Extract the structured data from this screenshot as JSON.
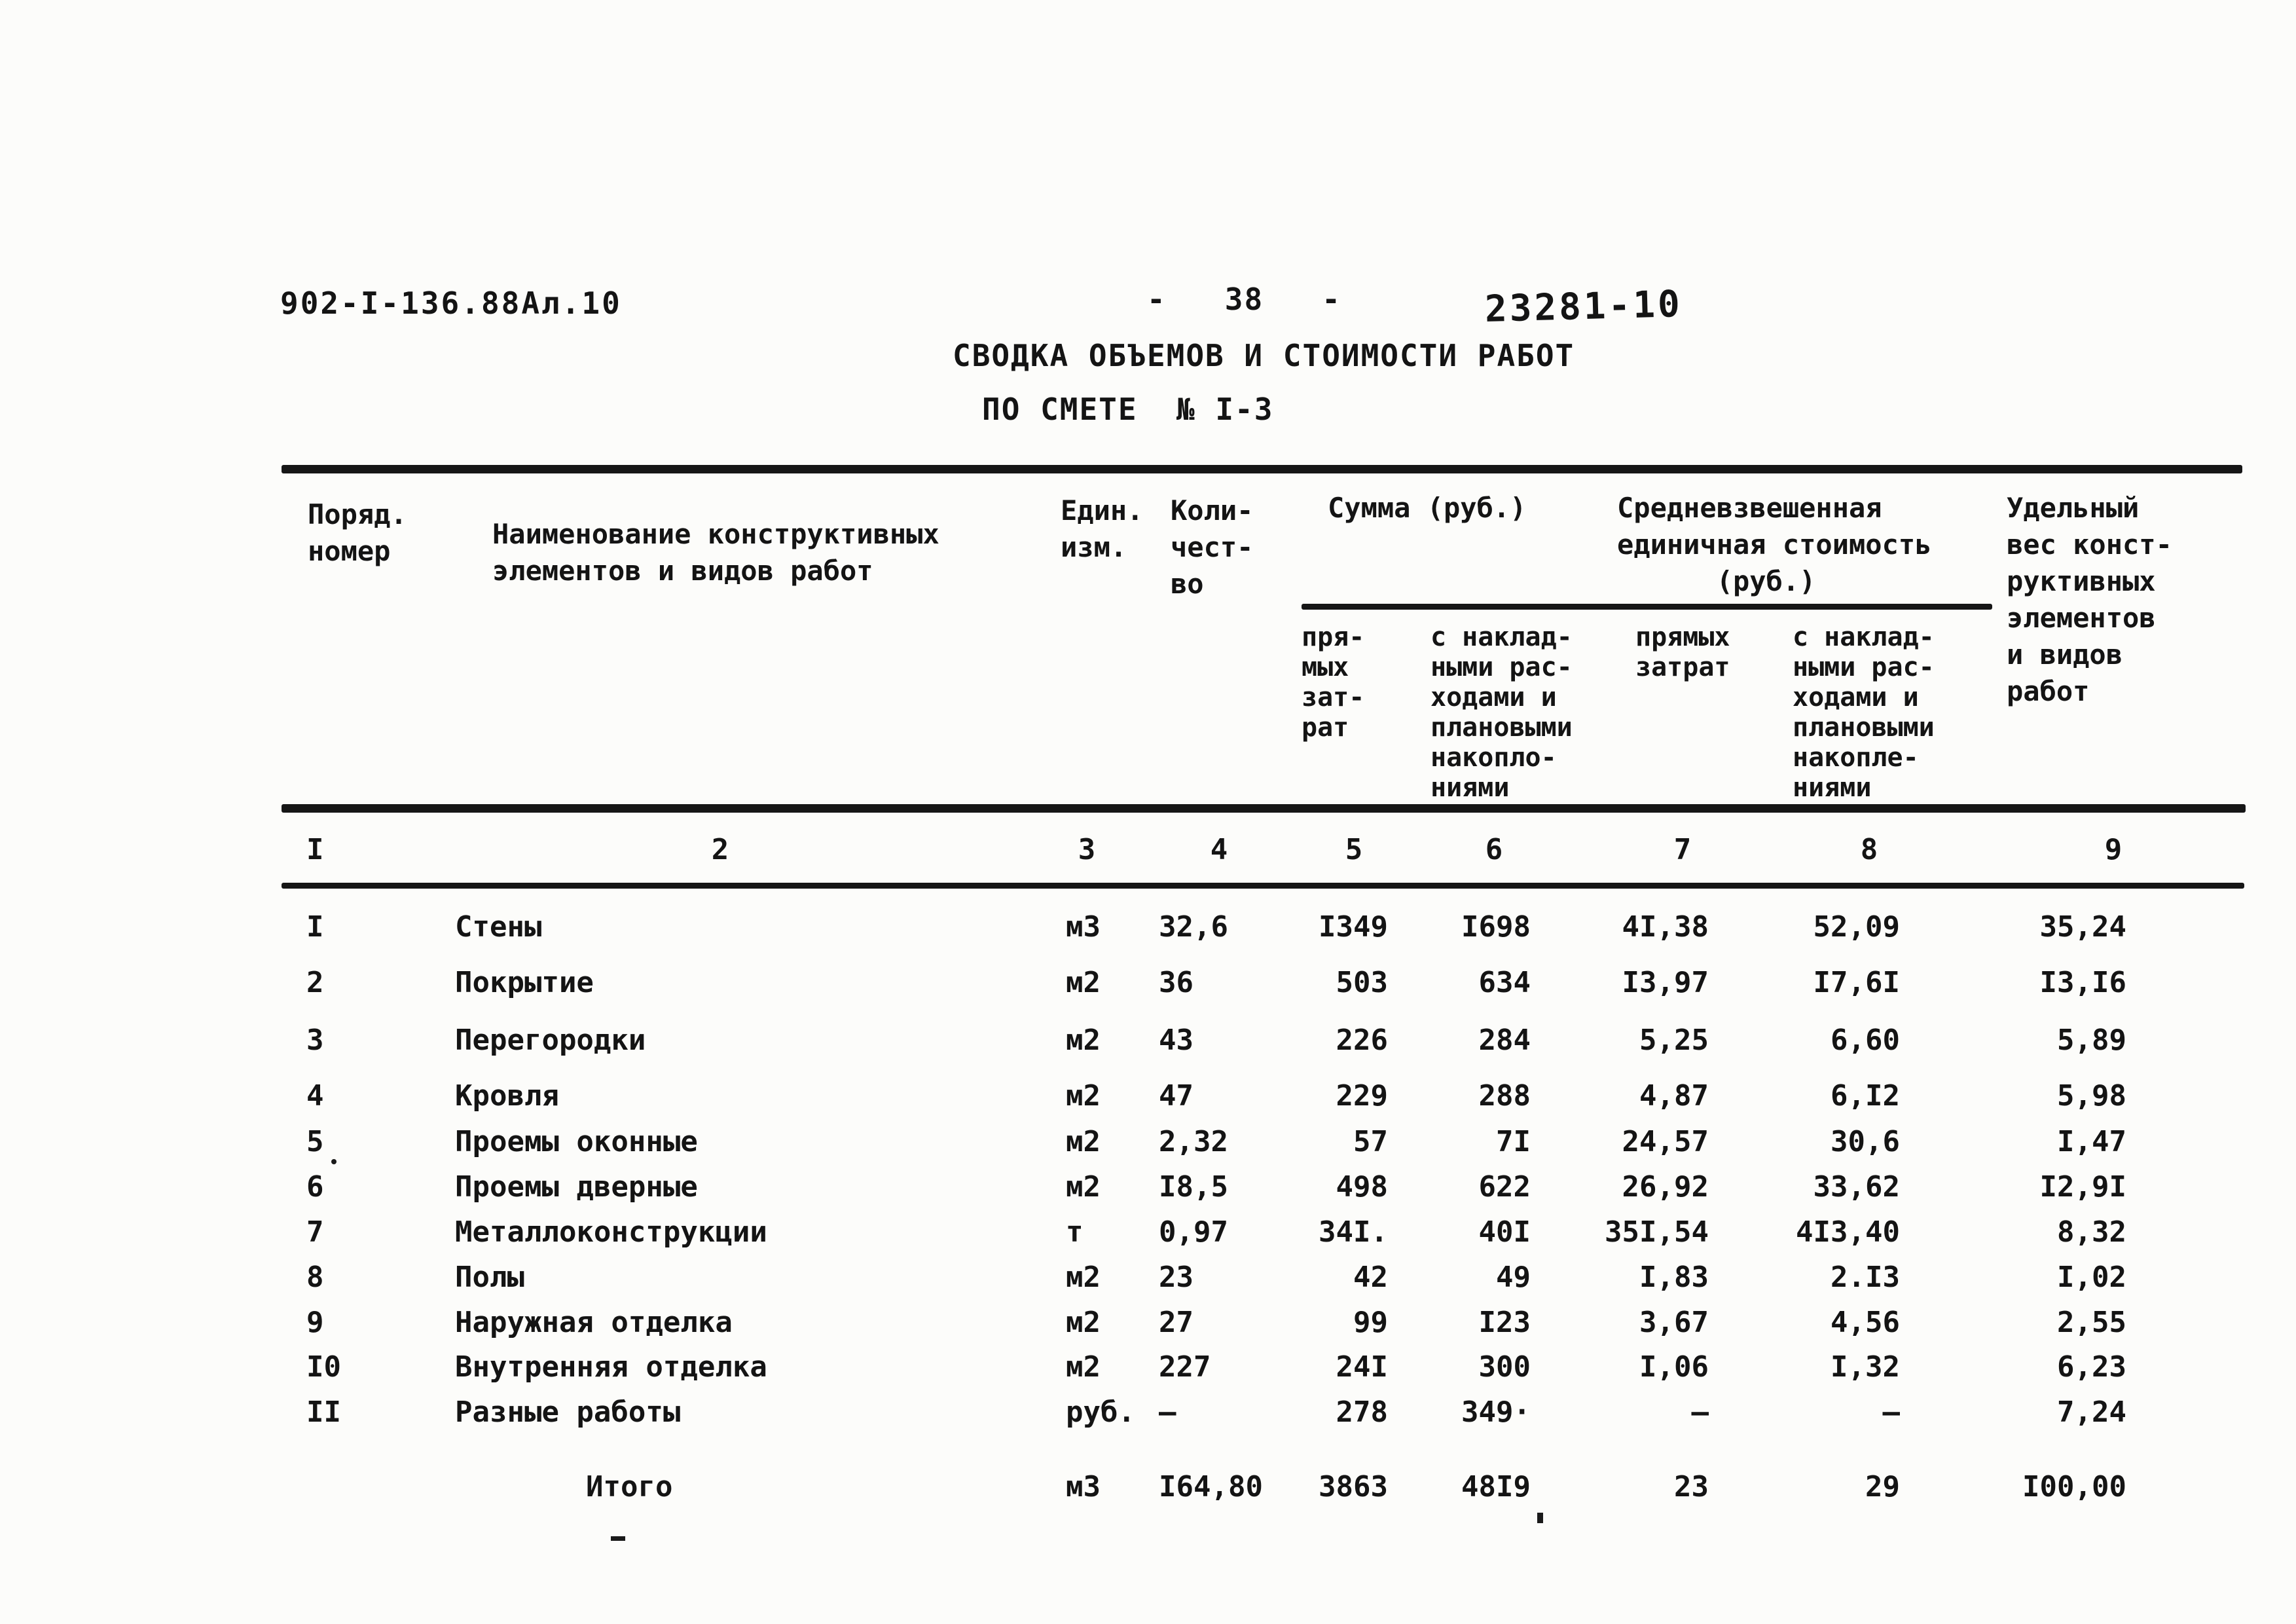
{
  "page_header": {
    "doc_number": "902-I-136.88Ал.10",
    "page_number": "-   38   -",
    "doc_code": "23281-10"
  },
  "title": {
    "line1": "СВОДКА ОБЪЕМОВ И СТОИМОСТИ РАБОТ",
    "line2": "ПО СМЕТЕ  № I-3"
  },
  "table": {
    "headers": {
      "col1": "Поряд.\nномер",
      "col2": "Наименование конструктивных\nэлементов и видов работ",
      "col3": "Един.\nизм.",
      "col4": "Коли-\nчест-\nво",
      "sum_group": "Сумма (руб.)",
      "sum_sub1": "пря-\nмых\nзат-\nрат",
      "sum_sub2": "с наклад-\nными рас-\nходами и\nплановыми\nнакопло-\nниями",
      "avg_group": "Средневзвешенная\nединичная стоимость\n      (руб.)",
      "avg_sub1": "прямых\nзатрат",
      "avg_sub2": "с наклад-\nными рас-\nходами и\nплановыми\nнакопле-\nниями",
      "col9": "Удельный\nвес конст-\nруктивных\nэлементов\nи видов\nработ"
    },
    "column_numbers": [
      "I",
      "2",
      "3",
      "4",
      "5",
      "6",
      "7",
      "8",
      "9"
    ],
    "rows": [
      {
        "num": "I",
        "name": "Стены",
        "unit": "м3",
        "qty": "32,6",
        "direct": "I349",
        "overhead": "I698",
        "unit_direct": "4I,38",
        "unit_overhead": "52,09",
        "share": "35,24"
      },
      {
        "num": "2",
        "name": "Покрытие",
        "unit": "м2",
        "qty": "36",
        "direct": "503",
        "overhead": "634",
        "unit_direct": "I3,97",
        "unit_overhead": "I7,6I",
        "share": "I3,I6"
      },
      {
        "num": "3",
        "name": "Перегородки",
        "unit": "м2",
        "qty": "43",
        "direct": "226",
        "overhead": "284",
        "unit_direct": "5,25",
        "unit_overhead": "6,60",
        "share": "5,89"
      },
      {
        "num": "4",
        "name": "Кровля",
        "unit": "м2",
        "qty": "47",
        "direct": "229",
        "overhead": "288",
        "unit_direct": "4,87",
        "unit_overhead": "6,I2",
        "share": "5,98"
      },
      {
        "num": "5",
        "name": "Проемы оконные",
        "unit": "м2",
        "qty": "2,32",
        "direct": "57",
        "overhead": "7I",
        "unit_direct": "24,57",
        "unit_overhead": "30,6",
        "share": "I,47"
      },
      {
        "num": "6",
        "name": "Проемы дверные",
        "unit": "м2",
        "qty": "I8,5",
        "direct": "498",
        "overhead": "622",
        "unit_direct": "26,92",
        "unit_overhead": "33,62",
        "share": "I2,9I"
      },
      {
        "num": "7",
        "name": "Металлоконструкции",
        "unit": "т",
        "qty": "0,97",
        "direct": "34I.",
        "overhead": "40I",
        "unit_direct": "35I,54",
        "unit_overhead": "4I3,40",
        "share": "8,32"
      },
      {
        "num": "8",
        "name": "Полы",
        "unit": "м2",
        "qty": "23",
        "direct": "42",
        "overhead": "49",
        "unit_direct": "I,83",
        "unit_overhead": "2.I3",
        "share": "I,02"
      },
      {
        "num": "9",
        "name": "Наружная отделка",
        "unit": "м2",
        "qty": "27",
        "direct": "99",
        "overhead": "I23",
        "unit_direct": "3,67",
        "unit_overhead": "4,56",
        "share": "2,55"
      },
      {
        "num": "I0",
        "name": "Внутренняя отделка",
        "unit": "м2",
        "qty": "227",
        "direct": "24I",
        "overhead": "300",
        "unit_direct": "I,06",
        "unit_overhead": "I,32",
        "share": "6,23"
      },
      {
        "num": "II",
        "name": "Разные работы",
        "unit": "руб.",
        "qty": "–",
        "direct": "278",
        "overhead": "349·",
        "unit_direct": "–",
        "unit_overhead": "–",
        "share": "7,24"
      }
    ],
    "total": {
      "label": "Итого",
      "unit": "м3",
      "qty": "I64,80",
      "direct": "3863",
      "overhead": "48I9",
      "unit_direct": "23",
      "unit_overhead": "29",
      "share": "I00,00"
    }
  }
}
